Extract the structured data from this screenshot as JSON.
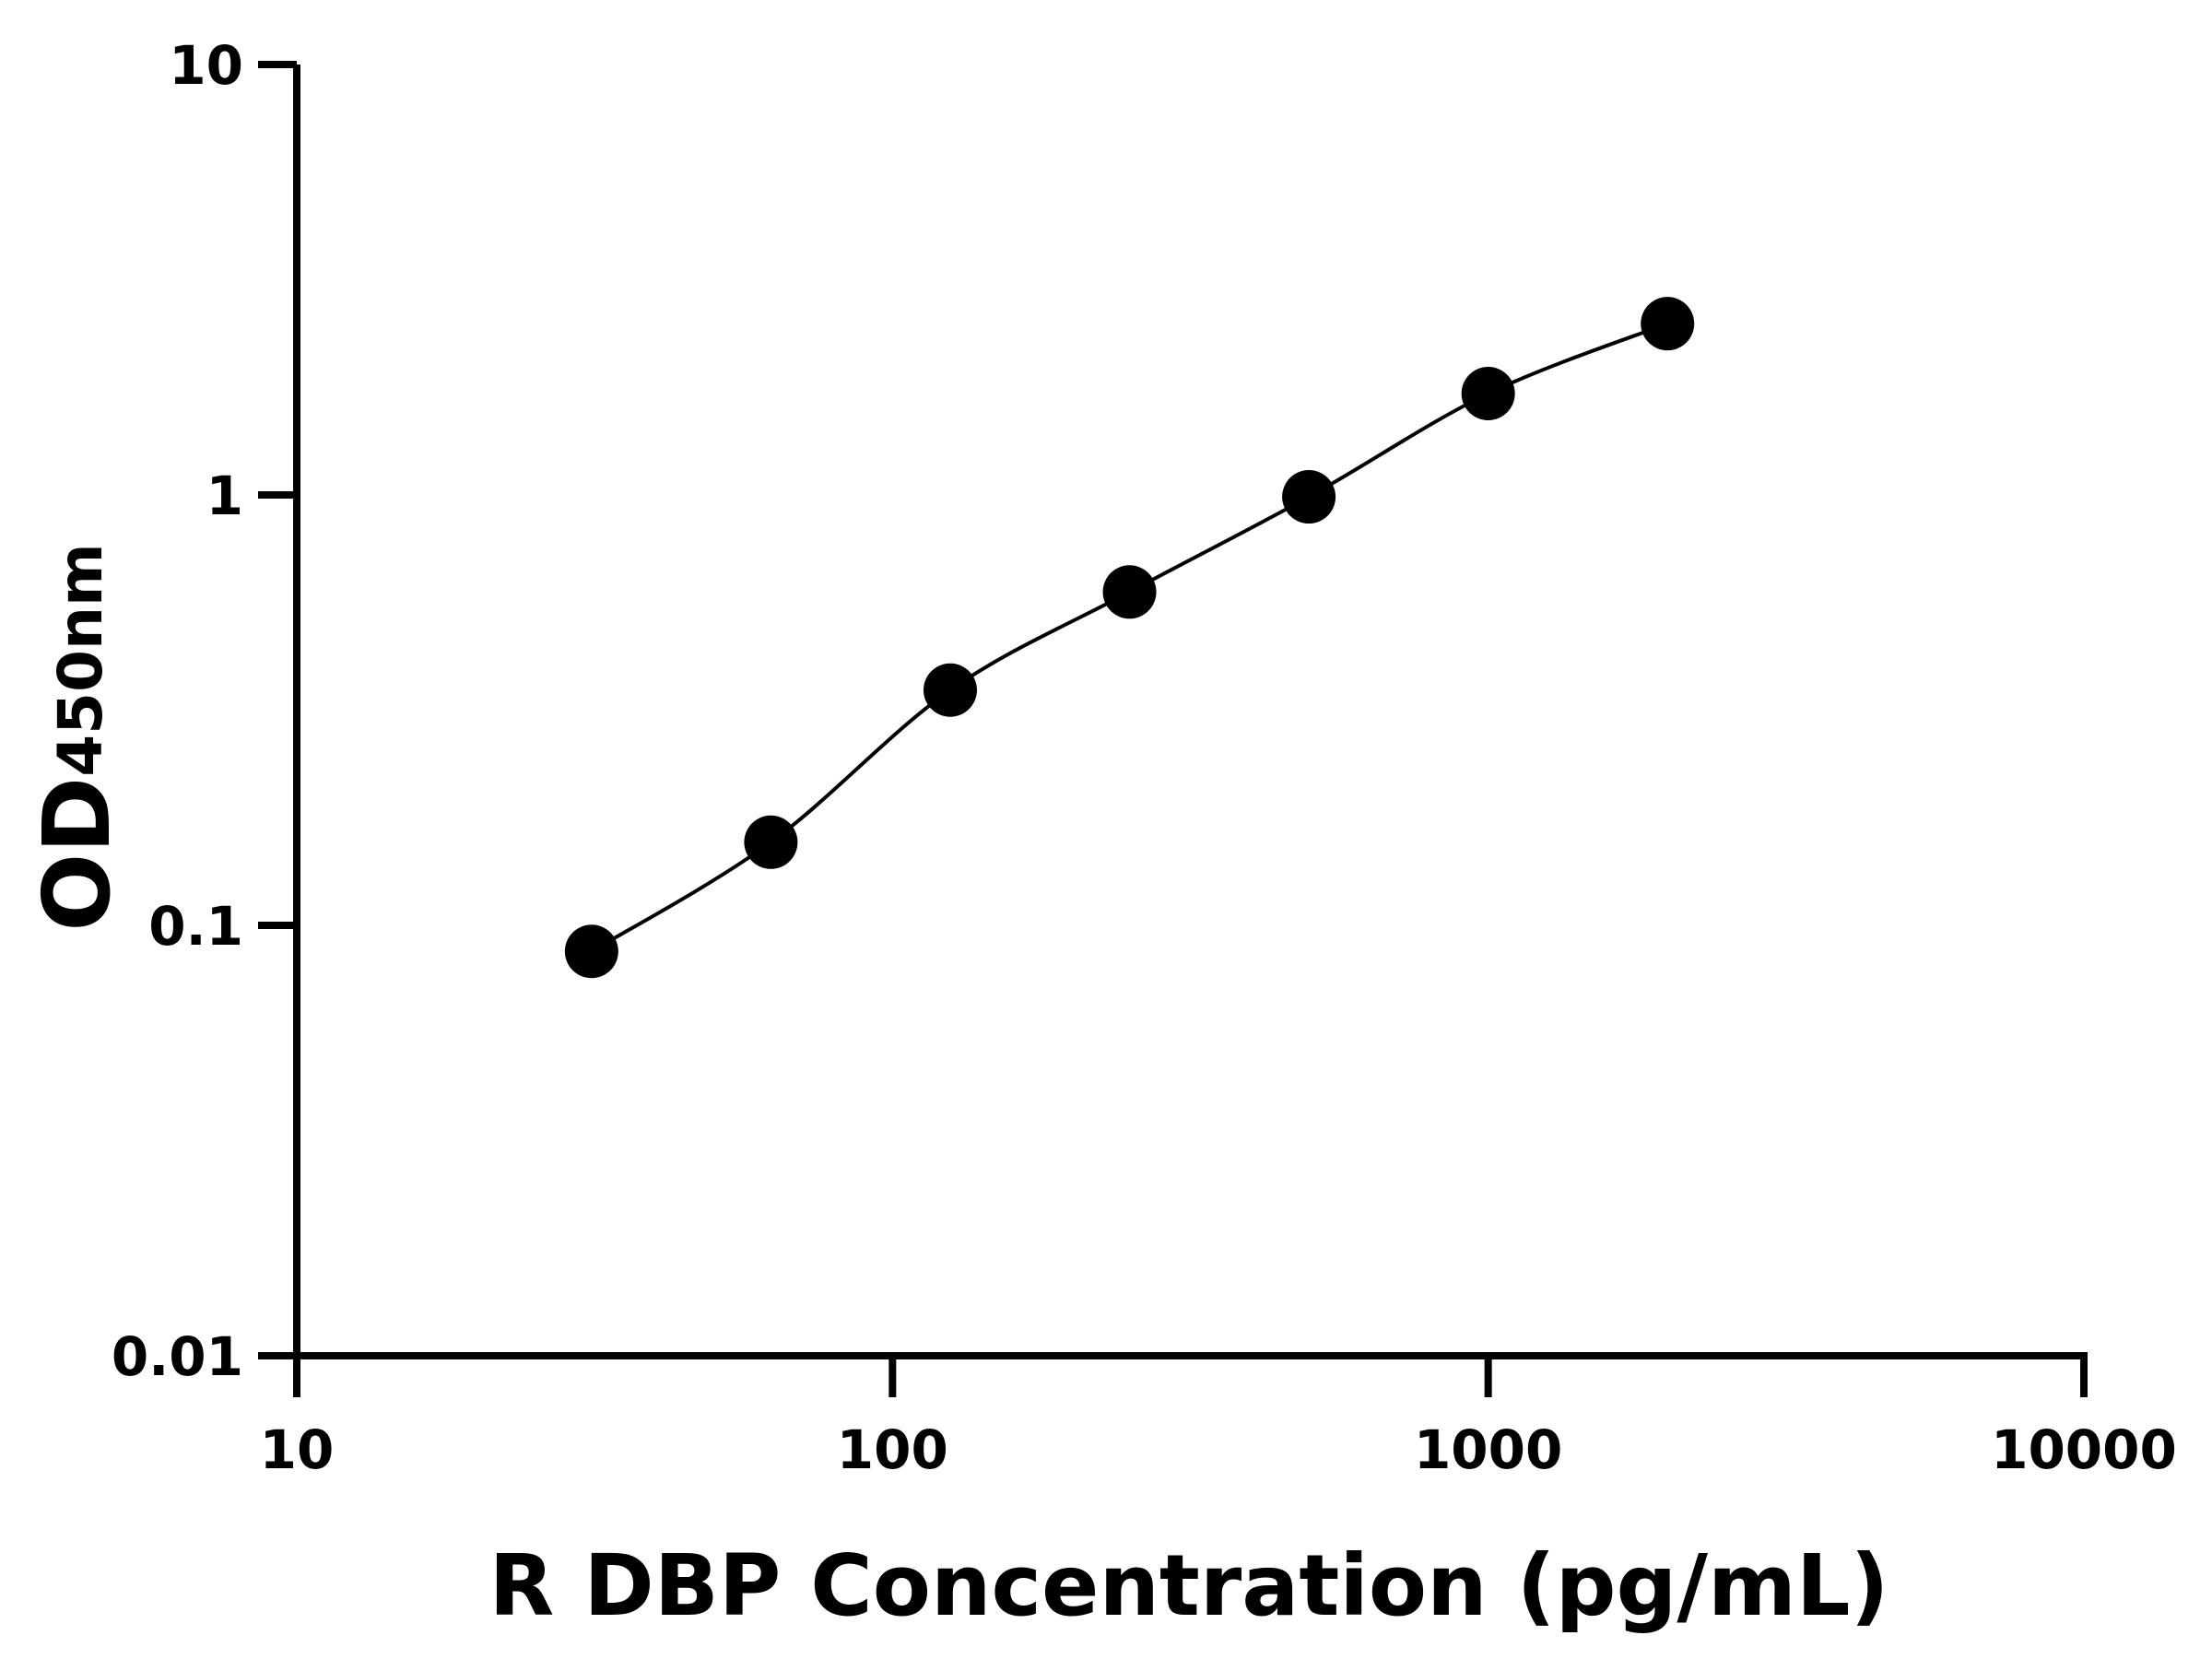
{
  "chart_data": {
    "type": "line",
    "title": "",
    "xlabel": "R DBP Concentration (pg/mL)",
    "ylabel_main": "OD",
    "ylabel_sub": "450nm",
    "x_scale": "log",
    "y_scale": "log",
    "xlim": [
      10,
      10000
    ],
    "ylim": [
      0.01,
      10
    ],
    "x_ticks": [
      10,
      100,
      1000,
      10000
    ],
    "x_tick_labels": [
      "10",
      "100",
      "1000",
      "10000"
    ],
    "y_ticks": [
      0.01,
      0.1,
      1,
      10
    ],
    "y_tick_labels": [
      "0.01",
      "0.1",
      "1",
      "10"
    ],
    "grid": false,
    "series": [
      {
        "x": [
          31.25,
          62.5,
          125,
          250,
          500,
          1000,
          2000
        ],
        "y": [
          0.087,
          0.156,
          0.352,
          0.595,
          0.99,
          1.72,
          2.5
        ],
        "marker": "circle",
        "color": "#000000",
        "fit_line": true
      }
    ]
  }
}
